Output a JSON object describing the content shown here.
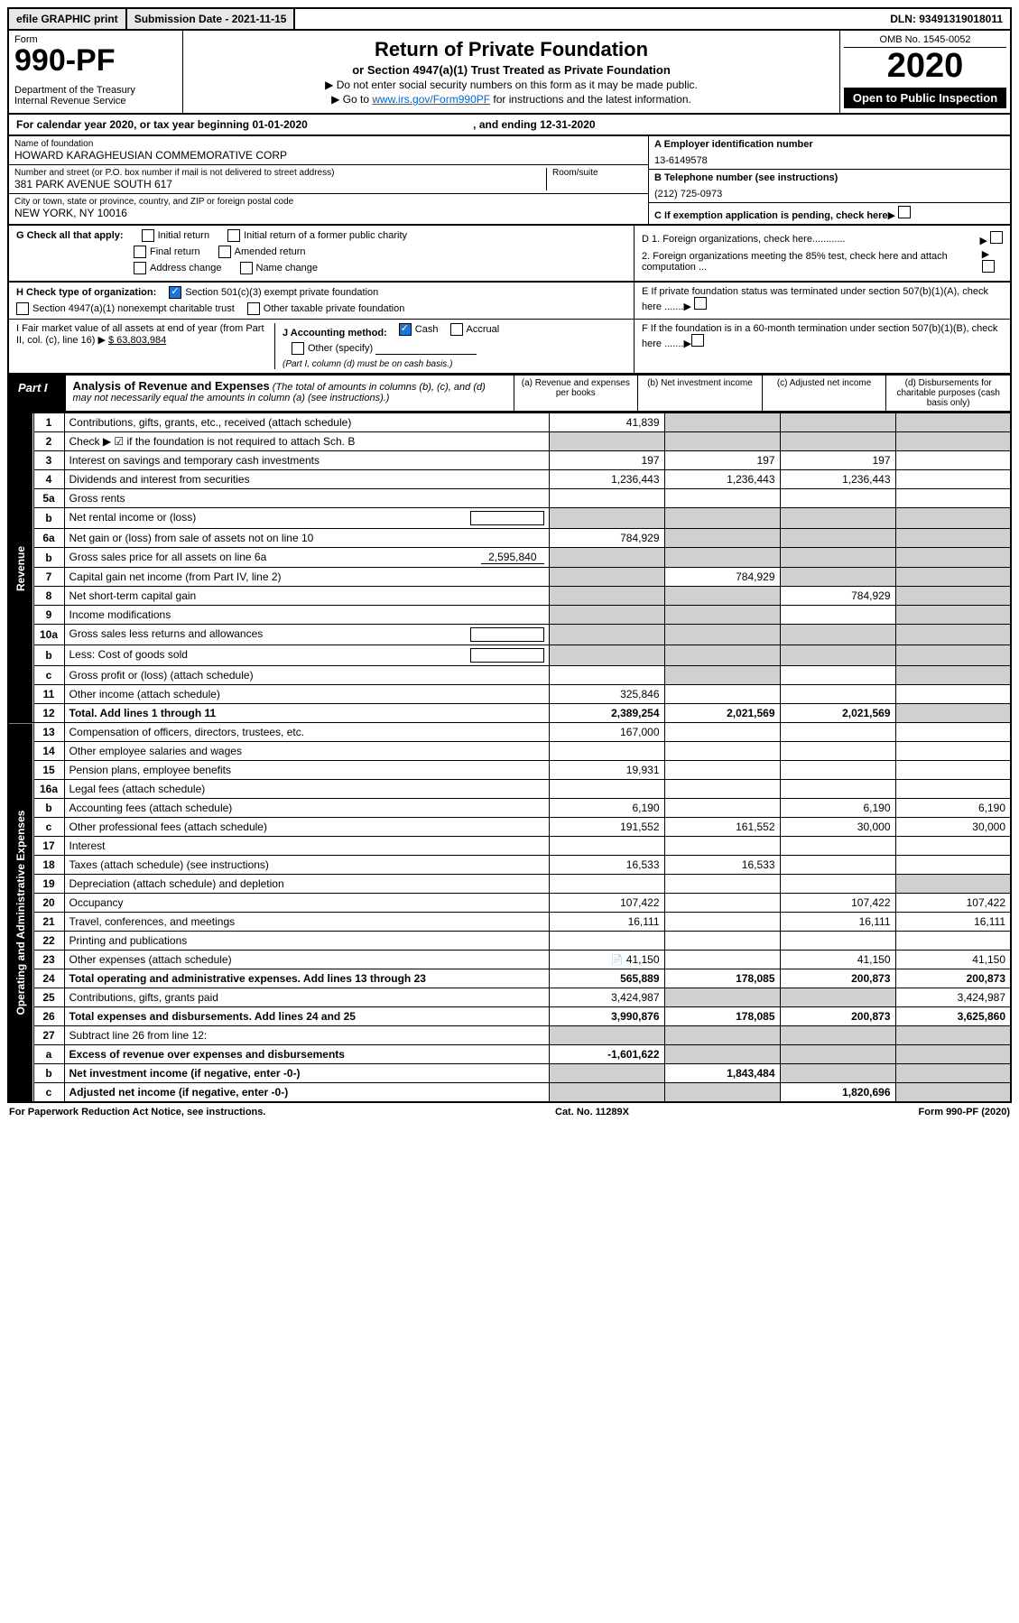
{
  "top": {
    "efile": "efile GRAPHIC print",
    "submission": "Submission Date - 2021-11-15",
    "dln": "DLN: 93491319018011"
  },
  "header": {
    "form_label": "Form",
    "form_number": "990-PF",
    "dept": "Department of the Treasury",
    "irs": "Internal Revenue Service",
    "title": "Return of Private Foundation",
    "subtitle": "or Section 4947(a)(1) Trust Treated as Private Foundation",
    "instr1": "▶ Do not enter social security numbers on this form as it may be made public.",
    "instr2_prefix": "▶ Go to ",
    "instr2_link": "www.irs.gov/Form990PF",
    "instr2_suffix": " for instructions and the latest information.",
    "omb": "OMB No. 1545-0052",
    "year": "2020",
    "open": "Open to Public Inspection"
  },
  "cal_year": {
    "text": "For calendar year 2020, or tax year beginning 01-01-2020",
    "ending": ", and ending 12-31-2020"
  },
  "entity": {
    "name_label": "Name of foundation",
    "name": "HOWARD KARAGHEUSIAN COMMEMORATIVE CORP",
    "addr_label": "Number and street (or P.O. box number if mail is not delivered to street address)",
    "addr": "381 PARK AVENUE SOUTH 617",
    "room_label": "Room/suite",
    "city_label": "City or town, state or province, country, and ZIP or foreign postal code",
    "city": "NEW YORK, NY  10016",
    "ein_label": "A Employer identification number",
    "ein": "13-6149578",
    "phone_label": "B Telephone number (see instructions)",
    "phone": "(212) 725-0973",
    "c_label": "C If exemption application is pending, check here"
  },
  "g": {
    "label": "G Check all that apply:",
    "initial": "Initial return",
    "initial_former": "Initial return of a former public charity",
    "final": "Final return",
    "amended": "Amended return",
    "address": "Address change",
    "name_change": "Name change"
  },
  "h": {
    "label": "H Check type of organization:",
    "501c3": "Section 501(c)(3) exempt private foundation",
    "4947": "Section 4947(a)(1) nonexempt charitable trust",
    "other_tax": "Other taxable private foundation"
  },
  "i": {
    "label": "I Fair market value of all assets at end of year (from Part II, col. (c), line 16) ▶",
    "value": "$  63,803,984"
  },
  "j": {
    "label": "J Accounting method:",
    "cash": "Cash",
    "accrual": "Accrual",
    "other": "Other (specify)",
    "note": "(Part I, column (d) must be on cash basis.)"
  },
  "d": {
    "d1": "D 1. Foreign organizations, check here............",
    "d2": "2. Foreign organizations meeting the 85% test, check here and attach computation ...",
    "e": "E  If private foundation status was terminated under section 507(b)(1)(A), check here .......",
    "f": "F  If the foundation is in a 60-month termination under section 507(b)(1)(B), check here .......▶"
  },
  "part1": {
    "label": "Part I",
    "title": "Analysis of Revenue and Expenses",
    "note": "(The total of amounts in columns (b), (c), and (d) may not necessarily equal the amounts in column (a) (see instructions).)",
    "cols": {
      "a": "(a) Revenue and expenses per books",
      "b": "(b) Net investment income",
      "c": "(c) Adjusted net income",
      "d": "(d) Disbursements for charitable purposes (cash basis only)"
    }
  },
  "side_labels": {
    "revenue": "Revenue",
    "expenses": "Operating and Administrative Expenses"
  },
  "rows": [
    {
      "n": "1",
      "desc": "Contributions, gifts, grants, etc., received (attach schedule)",
      "a": "41,839",
      "b": "",
      "c": "",
      "d": "",
      "shade_bcd": true
    },
    {
      "n": "2",
      "desc": "Check ▶ ☑ if the foundation is not required to attach Sch. B",
      "a": "",
      "b": "",
      "c": "",
      "d": "",
      "shade_all": true
    },
    {
      "n": "3",
      "desc": "Interest on savings and temporary cash investments",
      "a": "197",
      "b": "197",
      "c": "197",
      "d": ""
    },
    {
      "n": "4",
      "desc": "Dividends and interest from securities",
      "a": "1,236,443",
      "b": "1,236,443",
      "c": "1,236,443",
      "d": ""
    },
    {
      "n": "5a",
      "desc": "Gross rents",
      "a": "",
      "b": "",
      "c": "",
      "d": ""
    },
    {
      "n": "b",
      "desc": "Net rental income or (loss)",
      "a": "",
      "b": "",
      "c": "",
      "d": "",
      "shade_all": true,
      "inline_box": true
    },
    {
      "n": "6a",
      "desc": "Net gain or (loss) from sale of assets not on line 10",
      "a": "784,929",
      "b": "",
      "c": "",
      "d": "",
      "shade_bcd": true
    },
    {
      "n": "b",
      "desc": "Gross sales price for all assets on line 6a",
      "inline": "2,595,840",
      "shade_all": true
    },
    {
      "n": "7",
      "desc": "Capital gain net income (from Part IV, line 2)",
      "a": "",
      "b": "784,929",
      "c": "",
      "d": "",
      "shade_a": true,
      "shade_cd": true
    },
    {
      "n": "8",
      "desc": "Net short-term capital gain",
      "a": "",
      "b": "",
      "c": "784,929",
      "d": "",
      "shade_ab": true,
      "shade_d": true
    },
    {
      "n": "9",
      "desc": "Income modifications",
      "a": "",
      "b": "",
      "c": "",
      "d": "",
      "shade_ab": true,
      "shade_d": true
    },
    {
      "n": "10a",
      "desc": "Gross sales less returns and allowances",
      "inline_box": true,
      "shade_all": true
    },
    {
      "n": "b",
      "desc": "Less: Cost of goods sold",
      "inline_box": true,
      "shade_all": true
    },
    {
      "n": "c",
      "desc": "Gross profit or (loss) (attach schedule)",
      "a": "",
      "b": "",
      "c": "",
      "d": "",
      "shade_b": true,
      "shade_d": true
    },
    {
      "n": "11",
      "desc": "Other income (attach schedule)",
      "a": "325,846",
      "b": "",
      "c": "",
      "d": ""
    },
    {
      "n": "12",
      "desc": "Total. Add lines 1 through 11",
      "a": "2,389,254",
      "b": "2,021,569",
      "c": "2,021,569",
      "d": "",
      "bold": true,
      "shade_d": true
    },
    {
      "n": "13",
      "desc": "Compensation of officers, directors, trustees, etc.",
      "a": "167,000",
      "b": "",
      "c": "",
      "d": ""
    },
    {
      "n": "14",
      "desc": "Other employee salaries and wages",
      "a": "",
      "b": "",
      "c": "",
      "d": ""
    },
    {
      "n": "15",
      "desc": "Pension plans, employee benefits",
      "a": "19,931",
      "b": "",
      "c": "",
      "d": ""
    },
    {
      "n": "16a",
      "desc": "Legal fees (attach schedule)",
      "a": "",
      "b": "",
      "c": "",
      "d": ""
    },
    {
      "n": "b",
      "desc": "Accounting fees (attach schedule)",
      "a": "6,190",
      "b": "",
      "c": "6,190",
      "d": "6,190"
    },
    {
      "n": "c",
      "desc": "Other professional fees (attach schedule)",
      "a": "191,552",
      "b": "161,552",
      "c": "30,000",
      "d": "30,000"
    },
    {
      "n": "17",
      "desc": "Interest",
      "a": "",
      "b": "",
      "c": "",
      "d": ""
    },
    {
      "n": "18",
      "desc": "Taxes (attach schedule) (see instructions)",
      "a": "16,533",
      "b": "16,533",
      "c": "",
      "d": ""
    },
    {
      "n": "19",
      "desc": "Depreciation (attach schedule) and depletion",
      "a": "",
      "b": "",
      "c": "",
      "d": "",
      "shade_d": true
    },
    {
      "n": "20",
      "desc": "Occupancy",
      "a": "107,422",
      "b": "",
      "c": "107,422",
      "d": "107,422"
    },
    {
      "n": "21",
      "desc": "Travel, conferences, and meetings",
      "a": "16,111",
      "b": "",
      "c": "16,111",
      "d": "16,111"
    },
    {
      "n": "22",
      "desc": "Printing and publications",
      "a": "",
      "b": "",
      "c": "",
      "d": ""
    },
    {
      "n": "23",
      "desc": "Other expenses (attach schedule)",
      "a": "41,150",
      "b": "",
      "c": "41,150",
      "d": "41,150",
      "icon": true
    },
    {
      "n": "24",
      "desc": "Total operating and administrative expenses. Add lines 13 through 23",
      "a": "565,889",
      "b": "178,085",
      "c": "200,873",
      "d": "200,873",
      "bold": true
    },
    {
      "n": "25",
      "desc": "Contributions, gifts, grants paid",
      "a": "3,424,987",
      "b": "",
      "c": "",
      "d": "3,424,987",
      "shade_bc": true
    },
    {
      "n": "26",
      "desc": "Total expenses and disbursements. Add lines 24 and 25",
      "a": "3,990,876",
      "b": "178,085",
      "c": "200,873",
      "d": "3,625,860",
      "bold": true
    },
    {
      "n": "27",
      "desc": "Subtract line 26 from line 12:",
      "shade_all": true
    },
    {
      "n": "a",
      "desc": "Excess of revenue over expenses and disbursements",
      "a": "-1,601,622",
      "b": "",
      "c": "",
      "d": "",
      "bold": true,
      "shade_bcd": true
    },
    {
      "n": "b",
      "desc": "Net investment income (if negative, enter -0-)",
      "a": "",
      "b": "1,843,484",
      "c": "",
      "d": "",
      "bold": true,
      "shade_a": true,
      "shade_cd": true
    },
    {
      "n": "c",
      "desc": "Adjusted net income (if negative, enter -0-)",
      "a": "",
      "b": "",
      "c": "1,820,696",
      "d": "",
      "bold": true,
      "shade_ab": true,
      "shade_d": true
    }
  ],
  "footer": {
    "left": "For Paperwork Reduction Act Notice, see instructions.",
    "center": "Cat. No. 11289X",
    "right": "Form 990-PF (2020)"
  }
}
